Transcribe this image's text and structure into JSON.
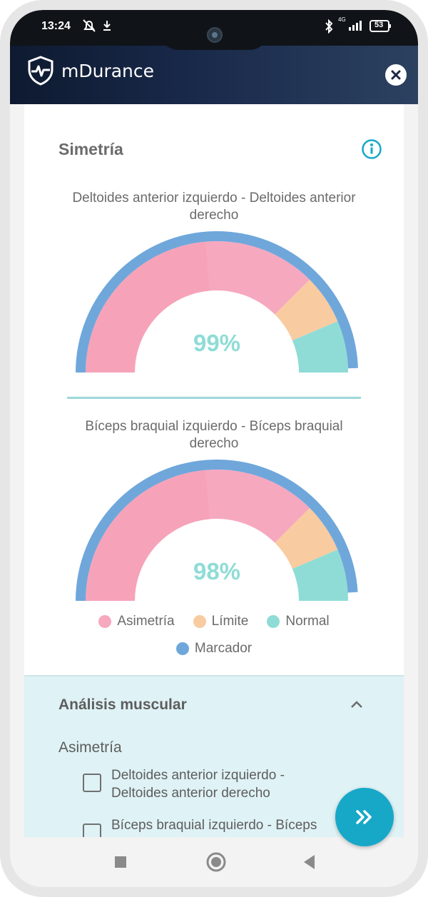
{
  "status_bar": {
    "time": "13:24",
    "battery": "53",
    "network": "4G",
    "icons": [
      "bell-off-icon",
      "download-icon",
      "bluetooth-icon",
      "signal-icon",
      "battery-icon"
    ]
  },
  "app_bar": {
    "brand": "mDurance",
    "close_icon": "close-icon"
  },
  "symmetry": {
    "title": "Simetría",
    "info_icon": "info-icon",
    "gauges": [
      {
        "title": "Deltoides anterior izquierdo - Deltoides anterior derecho",
        "value_label": "99%",
        "value": 99
      },
      {
        "title": "Bíceps braquial izquierdo - Bíceps braquial derecho",
        "value_label": "98%",
        "value": 98
      }
    ]
  },
  "legend": [
    {
      "label": "Asimetría",
      "color": "#f6a8bf"
    },
    {
      "label": "Límite",
      "color": "#f9cba0"
    },
    {
      "label": "Normal",
      "color": "#8fdcd6"
    },
    {
      "label": "Marcador",
      "color": "#6fa7db"
    }
  ],
  "analysis": {
    "title": "Análisis muscular",
    "subtitle": "Asimetría",
    "checkboxes": [
      {
        "label": "Deltoides anterior izquierdo - Deltoides anterior derecho",
        "checked": false
      },
      {
        "label": "Bíceps braquial izquierdo - Bíceps braquial derecho",
        "checked": false
      }
    ]
  },
  "colors": {
    "accent": "#17a8c8",
    "asymmetry": "#f6a8bf",
    "limit": "#f9cba0",
    "normal": "#8fdcd6",
    "marker": "#6fa7db"
  }
}
